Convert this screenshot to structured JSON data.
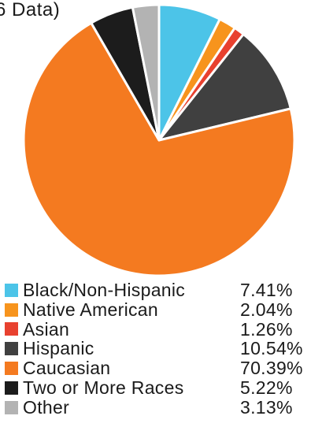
{
  "chart_data": {
    "type": "pie",
    "title": "6 Data)",
    "slices": [
      {
        "label": "Black/Non-Hispanic",
        "value": 7.41,
        "display": "7.41%",
        "color": "#4cc4e8"
      },
      {
        "label": "Native American",
        "value": 2.04,
        "display": "2.04%",
        "color": "#f7941d"
      },
      {
        "label": "Asian",
        "value": 1.26,
        "display": "1.26%",
        "color": "#e8412f"
      },
      {
        "label": "Hispanic",
        "value": 10.54,
        "display": "10.54%",
        "color": "#404040"
      },
      {
        "label": "Caucasian",
        "value": 70.39,
        "display": "70.39%",
        "color": "#f47a20"
      },
      {
        "label": "Two or More Races",
        "value": 5.22,
        "display": "5.22%",
        "color": "#1c1c1c"
      },
      {
        "label": "Other",
        "value": 3.13,
        "display": "3.13%",
        "color": "#b3b3b3"
      }
    ],
    "start": "top",
    "direction": "clockwise",
    "legend_position": "bottom"
  }
}
